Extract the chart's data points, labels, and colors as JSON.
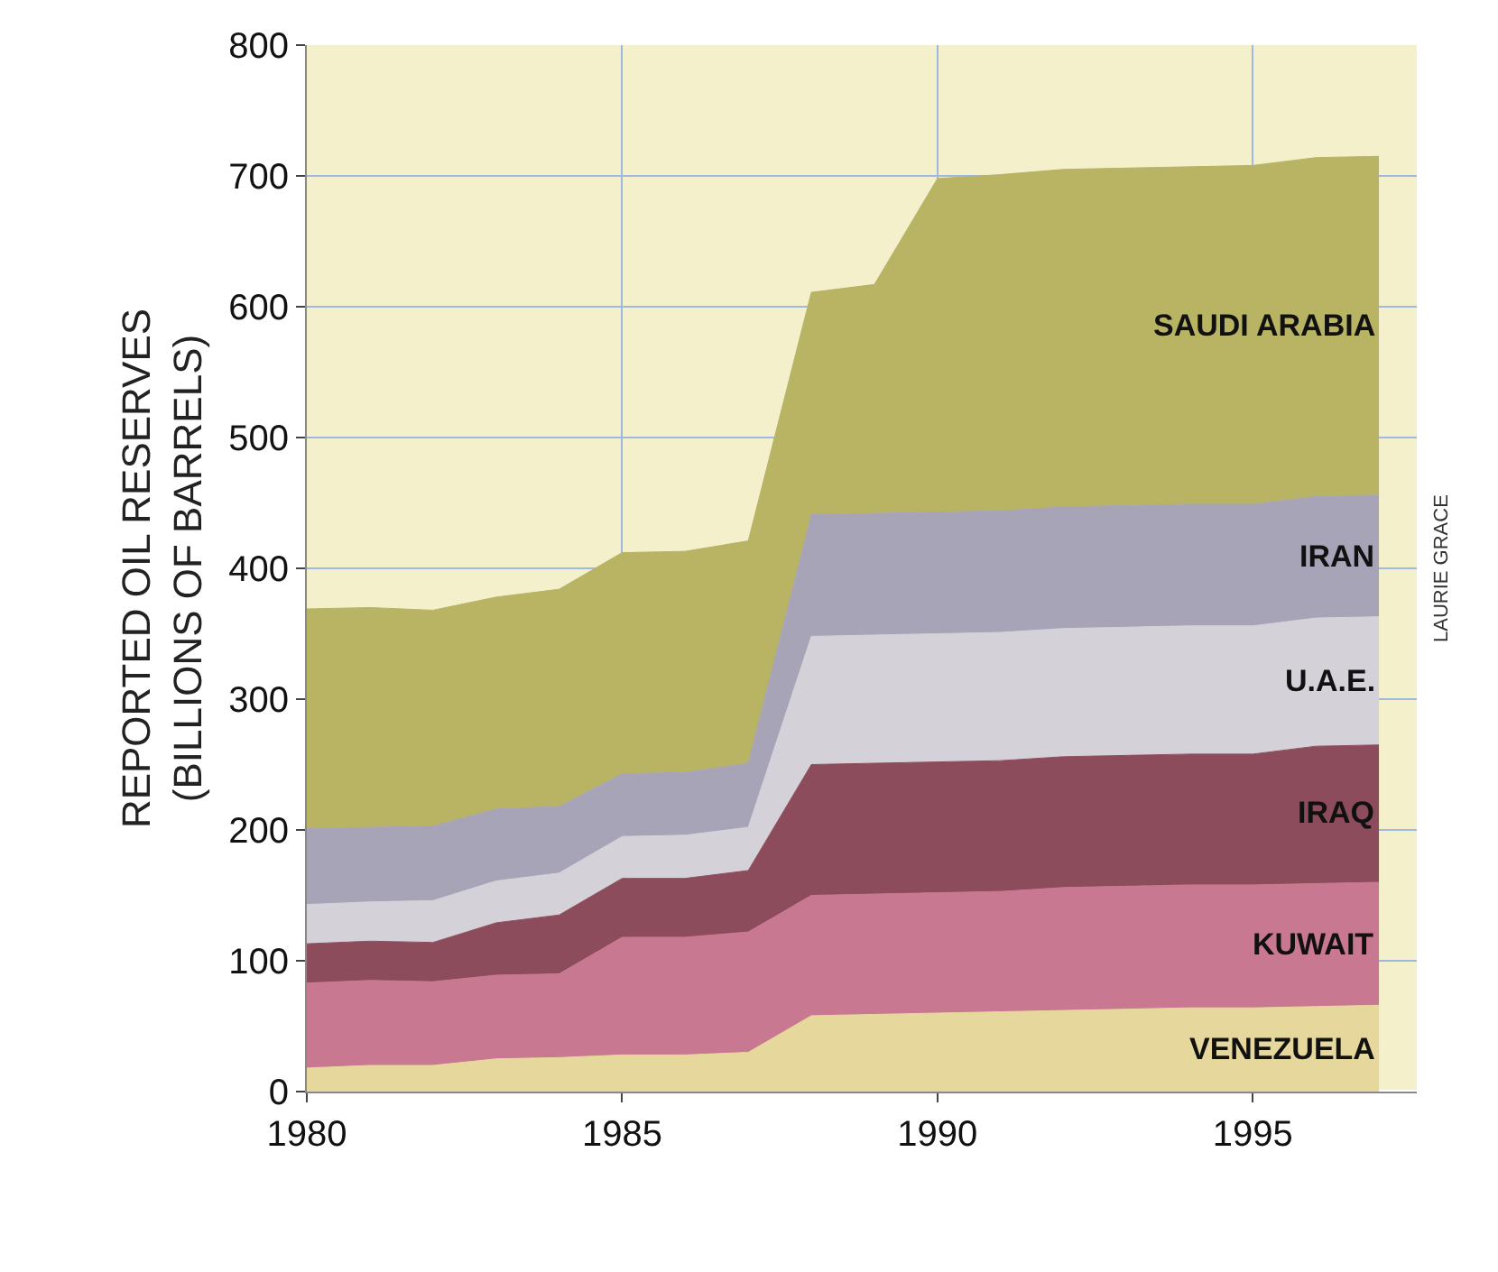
{
  "chart_data": {
    "type": "area",
    "stacked": true,
    "ylabel": "REPORTED OIL RESERVES\n(BILLIONS OF BARRELS)",
    "x": [
      1980,
      1981,
      1982,
      1983,
      1984,
      1985,
      1986,
      1987,
      1988,
      1989,
      1990,
      1991,
      1992,
      1993,
      1994,
      1995,
      1996,
      1997
    ],
    "series": [
      {
        "name": "VENEZUELA",
        "color": "#e6d89c",
        "values": [
          18,
          20,
          20,
          25,
          26,
          28,
          28,
          30,
          58,
          59,
          60,
          61,
          62,
          63,
          64,
          64,
          65,
          66
        ]
      },
      {
        "name": "KUWAIT",
        "color": "#c87890",
        "values": [
          65,
          65,
          64,
          64,
          64,
          90,
          90,
          92,
          92,
          92,
          92,
          92,
          94,
          94,
          94,
          94,
          94,
          94
        ]
      },
      {
        "name": "IRAQ",
        "color": "#8c4c5c",
        "values": [
          30,
          30,
          30,
          40,
          45,
          45,
          45,
          47,
          100,
          100,
          100,
          100,
          100,
          100,
          100,
          100,
          105,
          105
        ]
      },
      {
        "name": "U.A.E.",
        "color": "#d4d2d8",
        "values": [
          30,
          30,
          32,
          32,
          32,
          32,
          33,
          33,
          98,
          98,
          98,
          98,
          98,
          98,
          98,
          98,
          98,
          98
        ]
      },
      {
        "name": "IRAN",
        "color": "#a8a4b8",
        "values": [
          58,
          57,
          57,
          55,
          51,
          48,
          48,
          49,
          93,
          93,
          93,
          93,
          93,
          93,
          93,
          93,
          93,
          93
        ]
      },
      {
        "name": "SAUDI ARABIA",
        "color": "#b8b464",
        "values": [
          168,
          168,
          165,
          162,
          166,
          169,
          169,
          170,
          170,
          175,
          255,
          257,
          258,
          258,
          258,
          259,
          259,
          259
        ]
      }
    ],
    "xlim": [
      1980,
      1997.6
    ],
    "ylim": [
      0,
      800
    ],
    "xticks": [
      1980,
      1985,
      1990,
      1995
    ],
    "yticks": [
      0,
      100,
      200,
      300,
      400,
      500,
      600,
      700,
      800
    ],
    "grid": true,
    "legend": false,
    "marker": "none",
    "annotations": [
      "LAURIE GRACE"
    ]
  }
}
